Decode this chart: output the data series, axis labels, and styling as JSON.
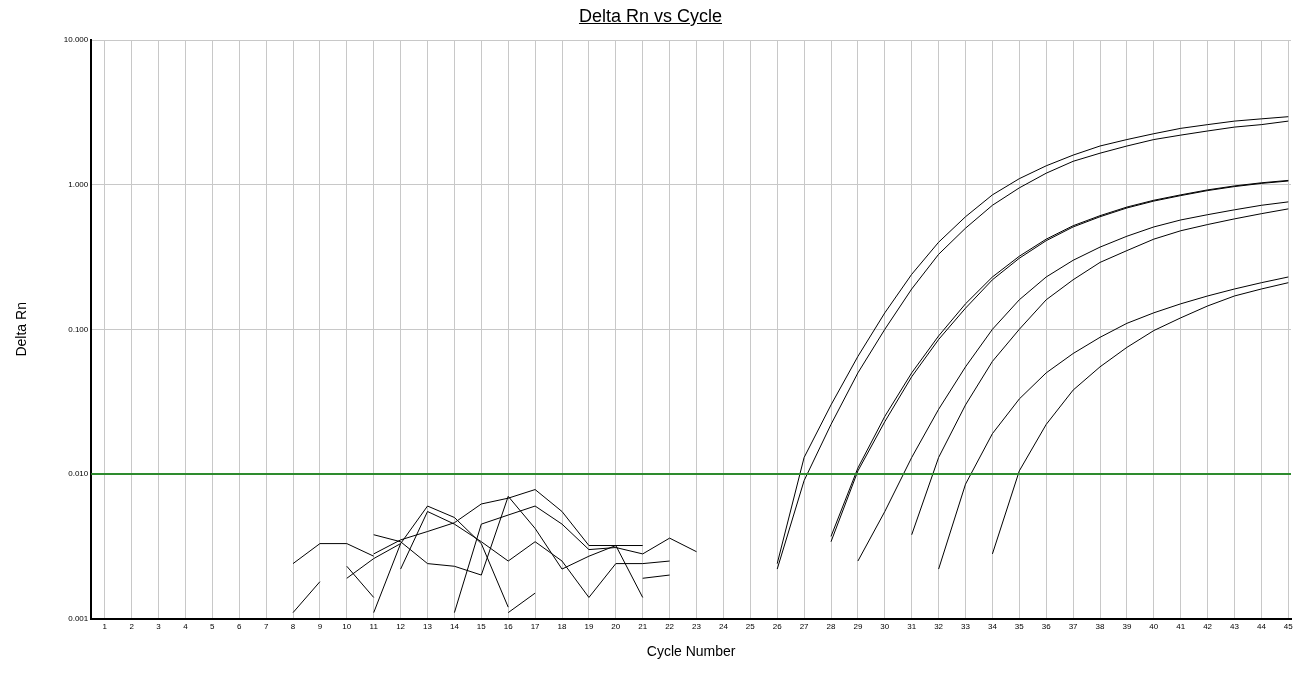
{
  "chart_data": {
    "type": "line",
    "title": "Delta Rn vs Cycle",
    "xlabel": "Cycle Number",
    "ylabel": "Delta Rn",
    "log": "y",
    "grid": true,
    "marker": "none",
    "line_style": "solid",
    "xlim": [
      0.5,
      45.1
    ],
    "xticks": [
      1,
      2,
      3,
      4,
      5,
      6,
      7,
      8,
      9,
      10,
      11,
      12,
      13,
      14,
      15,
      16,
      17,
      18,
      19,
      20,
      21,
      22,
      23,
      24,
      25,
      26,
      27,
      28,
      29,
      30,
      31,
      32,
      33,
      34,
      35,
      36,
      37,
      38,
      39,
      40,
      41,
      42,
      43,
      44,
      45
    ],
    "ylim": [
      0.001,
      10
    ],
    "yticks": [
      {
        "value": 0.001,
        "label": "0.001"
      },
      {
        "value": 0.01,
        "label": "0.010"
      },
      {
        "value": 0.1,
        "label": "0.100"
      },
      {
        "value": 1,
        "label": "1.000"
      },
      {
        "value": 10,
        "label": "10.000"
      }
    ],
    "ref_lines": [
      {
        "axis": "y",
        "value": 0.01,
        "label": null,
        "color": "#2e8b2e"
      }
    ],
    "series": [
      {
        "color": "#000000",
        "x": [
          26,
          27,
          28,
          29,
          30,
          31,
          32,
          33,
          34,
          35,
          36,
          37,
          38,
          39,
          40,
          41,
          42,
          43,
          44,
          45
        ],
        "values": [
          0.0024,
          0.013,
          0.03,
          0.065,
          0.13,
          0.24,
          0.4,
          0.6,
          0.85,
          1.1,
          1.35,
          1.6,
          1.85,
          2.05,
          2.25,
          2.45,
          2.6,
          2.75,
          2.85,
          2.95
        ]
      },
      {
        "color": "#000000",
        "x": [
          26,
          27,
          28,
          29,
          30,
          31,
          32,
          33,
          34,
          35,
          36,
          37,
          38,
          39,
          40,
          41,
          42,
          43,
          44,
          45
        ],
        "values": [
          0.0022,
          0.009,
          0.022,
          0.05,
          0.1,
          0.19,
          0.33,
          0.5,
          0.72,
          0.95,
          1.2,
          1.45,
          1.65,
          1.85,
          2.05,
          2.2,
          2.35,
          2.5,
          2.6,
          2.75
        ]
      },
      {
        "color": "#000000",
        "x": [
          28,
          29,
          30,
          31,
          32,
          33,
          34,
          35,
          36,
          37,
          38,
          39,
          40,
          41,
          42,
          43,
          44,
          45
        ],
        "values": [
          0.0037,
          0.011,
          0.025,
          0.05,
          0.09,
          0.15,
          0.23,
          0.32,
          0.42,
          0.52,
          0.61,
          0.7,
          0.78,
          0.85,
          0.92,
          0.98,
          1.03,
          1.07
        ]
      },
      {
        "color": "#000000",
        "x": [
          28,
          29,
          30,
          31,
          32,
          33,
          34,
          35,
          36,
          37,
          38,
          39,
          40,
          41,
          42,
          43,
          44,
          45
        ],
        "values": [
          0.0034,
          0.0105,
          0.023,
          0.047,
          0.085,
          0.14,
          0.22,
          0.31,
          0.41,
          0.51,
          0.6,
          0.69,
          0.77,
          0.84,
          0.91,
          0.97,
          1.02,
          1.06
        ]
      },
      {
        "color": "#000000",
        "x": [
          29,
          30,
          31,
          32,
          33,
          34,
          35,
          36,
          37,
          38,
          39,
          40,
          41,
          42,
          43,
          44,
          45
        ],
        "values": [
          0.0025,
          0.0055,
          0.013,
          0.028,
          0.055,
          0.1,
          0.16,
          0.23,
          0.3,
          0.37,
          0.44,
          0.51,
          0.57,
          0.62,
          0.67,
          0.72,
          0.76
        ]
      },
      {
        "color": "#000000",
        "x": [
          31,
          32,
          33,
          34,
          35,
          36,
          37,
          38,
          39,
          40,
          41,
          42,
          43,
          44,
          45
        ],
        "values": [
          0.0038,
          0.013,
          0.03,
          0.06,
          0.1,
          0.16,
          0.22,
          0.29,
          0.35,
          0.42,
          0.48,
          0.53,
          0.58,
          0.63,
          0.68
        ]
      },
      {
        "color": "#000000",
        "x": [
          32,
          33,
          34,
          35,
          36,
          37,
          38,
          39,
          40,
          41,
          42,
          43,
          44,
          45
        ],
        "values": [
          0.0022,
          0.0085,
          0.019,
          0.033,
          0.05,
          0.068,
          0.088,
          0.11,
          0.13,
          0.15,
          0.17,
          0.19,
          0.21,
          0.23
        ]
      },
      {
        "color": "#000000",
        "x": [
          34,
          35,
          36,
          37,
          38,
          39,
          40,
          41,
          42,
          43,
          44,
          45
        ],
        "values": [
          0.0028,
          0.0105,
          0.022,
          0.038,
          0.055,
          0.075,
          0.098,
          0.12,
          0.145,
          0.17,
          0.19,
          0.21
        ]
      },
      {
        "color": "#000000",
        "x": [
          8,
          9,
          10,
          11
        ],
        "values": [
          0.0024,
          0.0033,
          0.0033,
          0.0027
        ]
      },
      {
        "color": "#000000",
        "x": [
          8,
          9
        ],
        "values": [
          0.0011,
          0.0018
        ]
      },
      {
        "color": "#000000",
        "x": [
          10,
          11,
          12
        ],
        "values": [
          0.0019,
          0.0026,
          0.0033
        ]
      },
      {
        "color": "#000000",
        "x": [
          10,
          11
        ],
        "values": [
          0.0023,
          0.0014
        ]
      },
      {
        "color": "#000000",
        "x": [
          11,
          12,
          13,
          14,
          15,
          16
        ],
        "values": [
          0.0011,
          0.0033,
          0.006,
          0.005,
          0.0033,
          0.0012
        ]
      },
      {
        "color": "#000000",
        "x": [
          11,
          12,
          13,
          14,
          15,
          16,
          17,
          18,
          19,
          20,
          21
        ],
        "values": [
          0.0038,
          0.0034,
          0.0024,
          0.0023,
          0.002,
          0.007,
          0.0042,
          0.0022,
          0.0027,
          0.0032,
          0.0032
        ]
      },
      {
        "color": "#000000",
        "x": [
          12,
          13,
          14,
          15,
          16,
          17,
          18,
          19,
          20,
          21,
          22
        ],
        "values": [
          0.0022,
          0.0055,
          0.0045,
          0.0034,
          0.0025,
          0.0034,
          0.0025,
          0.0014,
          0.0024,
          0.0024,
          0.0025
        ]
      },
      {
        "color": "#000000",
        "x": [
          11,
          12,
          13,
          14,
          15,
          16,
          17,
          18,
          19,
          20,
          21
        ],
        "values": [
          0.0028,
          0.0035,
          0.004,
          0.0046,
          0.0062,
          0.0068,
          0.0078,
          0.0055,
          0.0032,
          0.0032,
          0.0014
        ]
      },
      {
        "color": "#000000",
        "x": [
          14,
          15,
          16,
          17,
          18,
          19,
          20,
          21,
          22,
          23
        ],
        "values": [
          0.0011,
          0.0045,
          0.0052,
          0.006,
          0.0045,
          0.003,
          0.0031,
          0.0028,
          0.0036,
          0.0029
        ]
      },
      {
        "color": "#000000",
        "x": [
          16,
          17
        ],
        "values": [
          0.0011,
          0.0015
        ]
      },
      {
        "color": "#000000",
        "x": [
          21,
          22
        ],
        "values": [
          0.0019,
          0.002
        ]
      }
    ]
  }
}
